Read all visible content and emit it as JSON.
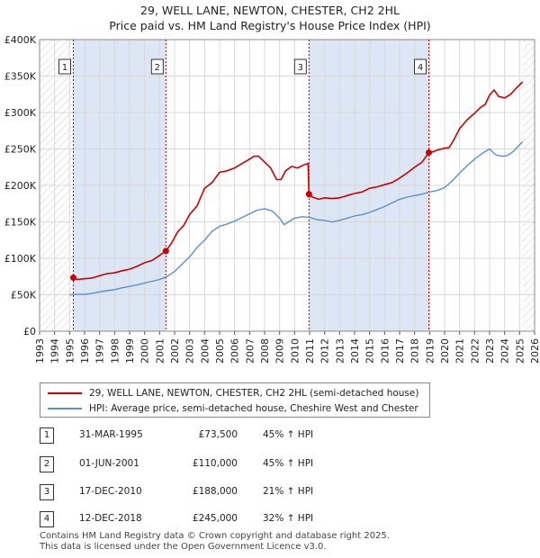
{
  "title_line1": "29, WELL LANE, NEWTON, CHESTER, CH2 2HL",
  "title_line2": "Price paid vs. HM Land Registry's House Price Index (HPI)",
  "legend": {
    "property_label": "29, WELL LANE, NEWTON, CHESTER, CH2 2HL (semi-detached house)",
    "hpi_label": "HPI: Average price, semi-detached house, Cheshire West and Chester"
  },
  "colors": {
    "property": "#cc0000",
    "hpi": "#5b8fd0",
    "shade": "#dde6f5",
    "grid": "#d8d8d8"
  },
  "sales": [
    {
      "num": "1",
      "date": "31-MAR-1995",
      "price": "£73,500",
      "hpi": "45% ↑ HPI"
    },
    {
      "num": "2",
      "date": "01-JUN-2001",
      "price": "£110,000",
      "hpi": "45% ↑ HPI"
    },
    {
      "num": "3",
      "date": "17-DEC-2010",
      "price": "£188,000",
      "hpi": "21% ↑ HPI"
    },
    {
      "num": "4",
      "date": "12-DEC-2018",
      "price": "£245,000",
      "hpi": "32% ↑ HPI"
    }
  ],
  "footer_line1": "Contains HM Land Registry data © Crown copyright and database right 2025.",
  "footer_line2": "This data is licensed under the Open Government Licence v3.0.",
  "chart_data": {
    "type": "line",
    "xlim": [
      1993,
      2026
    ],
    "ylim": [
      0,
      400000
    ],
    "y_ticks": [
      0,
      50000,
      100000,
      150000,
      200000,
      250000,
      300000,
      350000,
      400000
    ],
    "y_tick_labels": [
      "£0",
      "£50K",
      "£100K",
      "£150K",
      "£200K",
      "£250K",
      "£300K",
      "£350K",
      "£400K"
    ],
    "x_ticks": [
      "1993",
      "1994",
      "1995",
      "1996",
      "1997",
      "1998",
      "1999",
      "2000",
      "2001",
      "2002",
      "2003",
      "2004",
      "2005",
      "2006",
      "2007",
      "2008",
      "2009",
      "2010",
      "2011",
      "2012",
      "2013",
      "2014",
      "2015",
      "2016",
      "2017",
      "2018",
      "2019",
      "2020",
      "2021",
      "2022",
      "2023",
      "2024",
      "2025",
      "2026"
    ],
    "hatched_ranges": [
      [
        1993,
        1995.25
      ],
      [
        2025.2,
        2026
      ]
    ],
    "sale_markers": [
      {
        "label": "1",
        "x": 1995.25,
        "y": 73500
      },
      {
        "label": "2",
        "x": 2001.42,
        "y": 110000
      },
      {
        "label": "3",
        "x": 2010.96,
        "y": 188000
      },
      {
        "label": "4",
        "x": 2018.95,
        "y": 245000
      }
    ],
    "series": [
      {
        "name": "29, WELL LANE, NEWTON, CHESTER, CH2 2HL (semi-detached house)",
        "x": [
          1995.25,
          1995.5,
          1996,
          1996.5,
          1997,
          1997.5,
          1998,
          1998.5,
          1999,
          1999.5,
          2000,
          2000.5,
          2001,
          2001.42,
          2001.8,
          2002.2,
          2002.6,
          2003,
          2003.5,
          2004,
          2004.5,
          2005,
          2005.5,
          2006,
          2006.5,
          2007,
          2007.3,
          2007.6,
          2008,
          2008.4,
          2008.8,
          2009.1,
          2009.4,
          2009.8,
          2010.2,
          2010.6,
          2010.9,
          2010.96,
          2011.2,
          2011.6,
          2012,
          2012.5,
          2013,
          2013.5,
          2014,
          2014.5,
          2015,
          2015.5,
          2016,
          2016.5,
          2017,
          2017.5,
          2018,
          2018.5,
          2018.95,
          2019.2,
          2019.6,
          2020,
          2020.3,
          2020.6,
          2021,
          2021.5,
          2022,
          2022.4,
          2022.7,
          2023,
          2023.3,
          2023.6,
          2024,
          2024.4,
          2024.8,
          2025.2
        ],
        "y": [
          73500,
          71000,
          72000,
          73000,
          76000,
          79000,
          80000,
          83000,
          85000,
          89000,
          94000,
          97000,
          104000,
          110000,
          121000,
          136000,
          145000,
          160000,
          172000,
          196000,
          204000,
          218000,
          220000,
          224000,
          230000,
          236000,
          240000,
          240000,
          232000,
          224000,
          208000,
          208000,
          220000,
          226000,
          224000,
          228000,
          230000,
          188000,
          184000,
          181000,
          183000,
          182000,
          183000,
          186000,
          189000,
          191000,
          196000,
          198000,
          201000,
          204000,
          210000,
          217000,
          225000,
          232000,
          245000,
          246000,
          249000,
          251000,
          252000,
          262000,
          278000,
          290000,
          299000,
          307000,
          311000,
          324000,
          331000,
          322000,
          320000,
          325000,
          334000,
          342000
        ]
      },
      {
        "name": "HPI: Average price, semi-detached house, Cheshire West and Chester",
        "x": [
          1995,
          1995.5,
          1996,
          1996.5,
          1997,
          1997.5,
          1998,
          1998.5,
          1999,
          1999.5,
          2000,
          2000.5,
          2001,
          2001.5,
          2002,
          2002.5,
          2003,
          2003.5,
          2004,
          2004.5,
          2005,
          2005.5,
          2006,
          2006.5,
          2007,
          2007.5,
          2008,
          2008.5,
          2009,
          2009.3,
          2009.6,
          2010,
          2010.5,
          2011,
          2011.5,
          2012,
          2012.5,
          2013,
          2013.5,
          2014,
          2014.5,
          2015,
          2015.5,
          2016,
          2016.5,
          2017,
          2017.5,
          2018,
          2018.5,
          2019,
          2019.5,
          2020,
          2020.5,
          2021,
          2021.5,
          2022,
          2022.5,
          2023,
          2023.4,
          2023.8,
          2024.2,
          2024.6,
          2025.2
        ],
        "y": [
          50000,
          50500,
          50500,
          52000,
          54000,
          55500,
          57000,
          59500,
          61500,
          63500,
          66000,
          68500,
          71000,
          75000,
          82000,
          92000,
          102000,
          115000,
          125000,
          137000,
          144000,
          147000,
          151000,
          156000,
          161000,
          166000,
          168000,
          165000,
          155000,
          146000,
          150000,
          155000,
          157000,
          156000,
          153000,
          152000,
          150000,
          152000,
          155000,
          158000,
          160000,
          163000,
          167000,
          171000,
          176000,
          181000,
          184000,
          186000,
          188000,
          191000,
          193000,
          197000,
          206000,
          217000,
          227000,
          236000,
          244000,
          250000,
          242000,
          240000,
          241000,
          247000,
          260000
        ]
      }
    ]
  }
}
